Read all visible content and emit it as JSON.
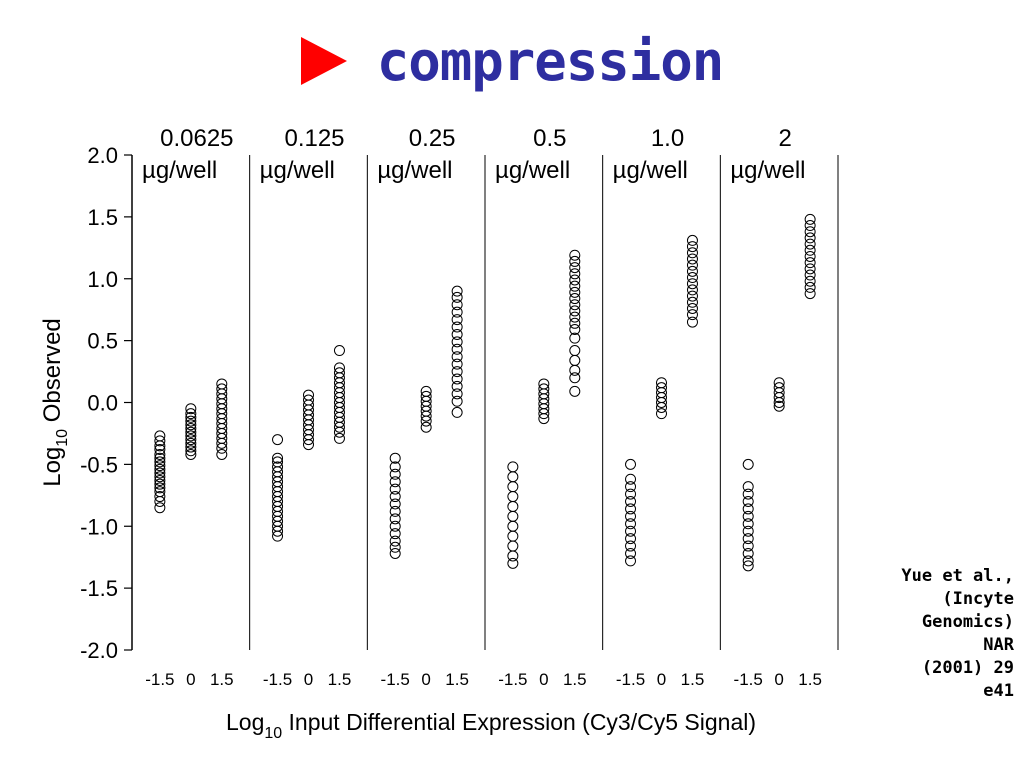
{
  "title": "compression",
  "colors": {
    "title": "#2e2ea0",
    "arrow": "#ff0000",
    "marker": "#000000"
  },
  "citation": [
    "Yue et al.,",
    "(Incyte",
    "Genomics)",
    "NAR",
    "(2001) 29",
    "e41"
  ],
  "chart_data": {
    "type": "scatter",
    "marker": "open-circle",
    "ylabel_main": "Log",
    "ylabel_sub": "10",
    "ylabel_rest": " Observed",
    "xlabel_main": "Log",
    "xlabel_sub": "10",
    "xlabel_rest": " Input Differential Expression (Cy3/Cy5 Signal)",
    "ylim": [
      -2.0,
      2.0
    ],
    "yticks": [
      "2.0",
      "1.5",
      "1.0",
      "0.5",
      "0.0",
      "-0.5",
      "-1.0",
      "-1.5",
      "-2.0"
    ],
    "ytick_values": [
      2.0,
      1.5,
      1.0,
      0.5,
      0.0,
      -0.5,
      -1.0,
      -1.5,
      -2.0
    ],
    "xticks": [
      "-1.5",
      "0",
      "1.5"
    ],
    "xtick_values": [
      -1.5,
      0,
      1.5
    ],
    "xlim": [
      -2.85,
      2.85
    ],
    "grid": false,
    "panels": [
      {
        "amount": "0.0625",
        "unit": "µg/well",
        "groups": [
          {
            "x": -1.5,
            "y": [
              -0.27,
              -0.31,
              -0.35,
              -0.38,
              -0.42,
              -0.45,
              -0.48,
              -0.51,
              -0.54,
              -0.57,
              -0.6,
              -0.63,
              -0.66,
              -0.69,
              -0.72,
              -0.76,
              -0.8,
              -0.85
            ]
          },
          {
            "x": 0,
            "y": [
              -0.05,
              -0.09,
              -0.12,
              -0.15,
              -0.18,
              -0.21,
              -0.24,
              -0.27,
              -0.3,
              -0.33,
              -0.36,
              -0.39,
              -0.42
            ]
          },
          {
            "x": 1.5,
            "y": [
              0.15,
              0.11,
              0.07,
              0.03,
              -0.01,
              -0.05,
              -0.09,
              -0.13,
              -0.17,
              -0.21,
              -0.25,
              -0.29,
              -0.33,
              -0.37,
              -0.42
            ]
          }
        ]
      },
      {
        "amount": "0.125",
        "unit": "µg/well",
        "groups": [
          {
            "x": -1.5,
            "y": [
              -0.3,
              -0.45,
              -0.48,
              -0.52,
              -0.56,
              -0.6,
              -0.64,
              -0.68,
              -0.72,
              -0.76,
              -0.8,
              -0.84,
              -0.88,
              -0.92,
              -0.96,
              -1.0,
              -1.04,
              -1.08
            ]
          },
          {
            "x": 0,
            "y": [
              0.06,
              0.02,
              -0.02,
              -0.06,
              -0.1,
              -0.14,
              -0.18,
              -0.22,
              -0.26,
              -0.3,
              -0.34
            ]
          },
          {
            "x": 1.5,
            "y": [
              0.42,
              0.28,
              0.24,
              0.2,
              0.16,
              0.12,
              0.08,
              0.04,
              0.0,
              -0.04,
              -0.08,
              -0.12,
              -0.16,
              -0.2,
              -0.24,
              -0.29
            ]
          }
        ]
      },
      {
        "amount": "0.25",
        "unit": "µg/well",
        "groups": [
          {
            "x": -1.5,
            "y": [
              -0.45,
              -0.52,
              -0.58,
              -0.64,
              -0.7,
              -0.76,
              -0.82,
              -0.88,
              -0.94,
              -1.0,
              -1.06,
              -1.12,
              -1.17,
              -1.22
            ]
          },
          {
            "x": 0,
            "y": [
              0.09,
              0.05,
              0.01,
              -0.03,
              -0.07,
              -0.11,
              -0.15,
              -0.2
            ]
          },
          {
            "x": 1.5,
            "y": [
              0.9,
              0.85,
              0.79,
              0.73,
              0.67,
              0.61,
              0.55,
              0.49,
              0.43,
              0.37,
              0.31,
              0.25,
              0.19,
              0.13,
              0.07,
              0.01,
              -0.08
            ]
          }
        ]
      },
      {
        "amount": "0.5",
        "unit": "µg/well",
        "groups": [
          {
            "x": -1.5,
            "y": [
              -0.52,
              -0.6,
              -0.68,
              -0.76,
              -0.84,
              -0.92,
              -1.0,
              -1.08,
              -1.16,
              -1.24,
              -1.3
            ]
          },
          {
            "x": 0,
            "y": [
              0.15,
              0.11,
              0.07,
              0.03,
              -0.01,
              -0.05,
              -0.09,
              -0.13
            ]
          },
          {
            "x": 1.5,
            "y": [
              1.19,
              1.14,
              1.09,
              1.04,
              0.99,
              0.94,
              0.89,
              0.84,
              0.79,
              0.74,
              0.69,
              0.64,
              0.59,
              0.52,
              0.42,
              0.34,
              0.26,
              0.2,
              0.09
            ]
          }
        ]
      },
      {
        "amount": "1.0",
        "unit": "µg/well",
        "groups": [
          {
            "x": -1.5,
            "y": [
              -0.5,
              -0.62,
              -0.68,
              -0.74,
              -0.8,
              -0.86,
              -0.92,
              -0.98,
              -1.04,
              -1.1,
              -1.16,
              -1.22,
              -1.28
            ]
          },
          {
            "x": 0,
            "y": [
              0.16,
              0.12,
              0.08,
              0.04,
              0.0,
              -0.04,
              -0.09
            ]
          },
          {
            "x": 1.5,
            "y": [
              1.31,
              1.26,
              1.21,
              1.16,
              1.11,
              1.06,
              1.01,
              0.96,
              0.91,
              0.86,
              0.81,
              0.76,
              0.71,
              0.65
            ]
          }
        ]
      },
      {
        "amount": "2",
        "unit": "µg/well",
        "groups": [
          {
            "x": -1.5,
            "y": [
              -0.5,
              -0.68,
              -0.74,
              -0.8,
              -0.86,
              -0.92,
              -0.98,
              -1.04,
              -1.1,
              -1.16,
              -1.22,
              -1.28,
              -1.32
            ]
          },
          {
            "x": 0,
            "y": [
              0.16,
              0.12,
              0.08,
              0.04,
              0.0,
              -0.03
            ]
          },
          {
            "x": 1.5,
            "y": [
              1.48,
              1.43,
              1.38,
              1.33,
              1.28,
              1.23,
              1.18,
              1.13,
              1.08,
              1.03,
              0.98,
              0.93,
              0.88
            ]
          }
        ]
      }
    ]
  }
}
